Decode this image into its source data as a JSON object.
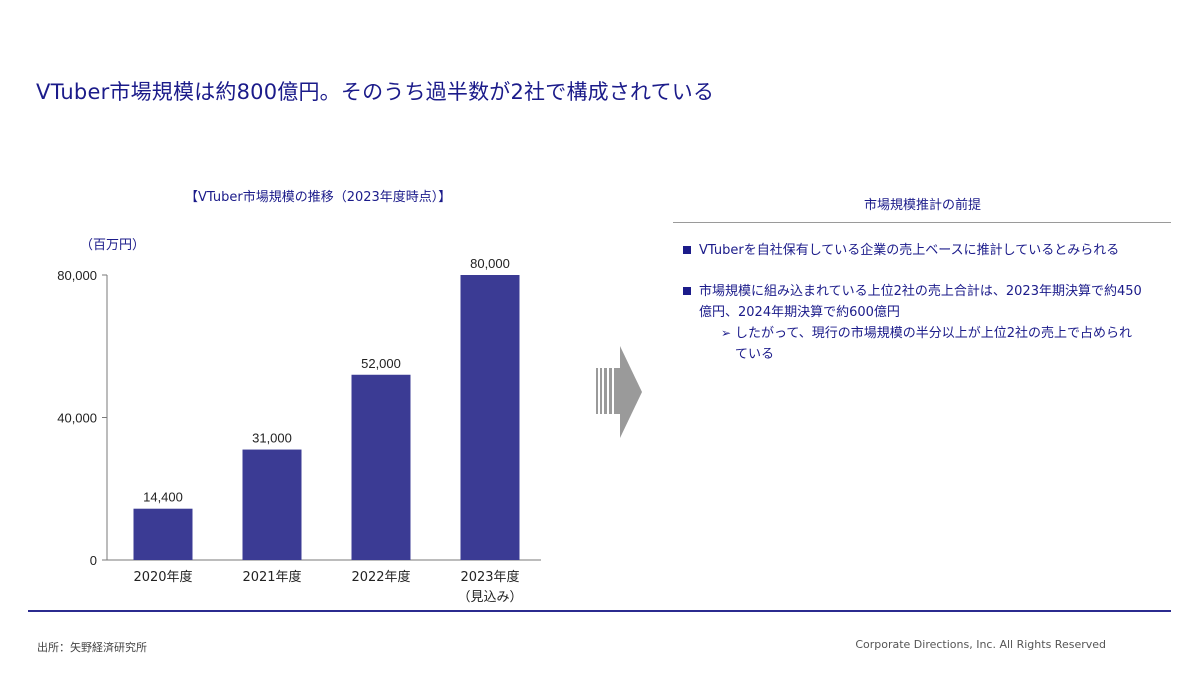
{
  "headline": "VTuber市場規模は約800億円。そのうち過半数が2社で構成されている",
  "chart_data": {
    "type": "bar",
    "title": "【VTuber市場規模の推移（2023年度時点）】",
    "unit": "（百万円）",
    "categories": [
      "2020年度",
      "2021年度",
      "2022年度",
      "2023年度"
    ],
    "category_sublabels": [
      "",
      "",
      "",
      "（見込み）"
    ],
    "values": [
      14400,
      31000,
      52000,
      80000
    ],
    "value_labels": [
      "14,400",
      "31,000",
      "52,000",
      "80,000"
    ],
    "yticks": [
      0,
      40000,
      80000
    ],
    "ytick_labels": [
      "0",
      "40,000",
      "80,000"
    ],
    "ylim": [
      0,
      80000
    ],
    "bar_color": "#3b3b94",
    "grid": false
  },
  "premise": {
    "title": "市場規模推計の前提",
    "bullets": [
      {
        "text": "VTuberを自社保有している企業の売上ベースに推計しているとみられる"
      },
      {
        "text_line1": "市場規模に組み込まれている上位2社の売上合計は、2023年期決算で約450",
        "text_line2": "億円、2024年期決算で約600億円",
        "sub_mark": "➢",
        "sub_line1": "したがって、現行の市場規模の半分以上が上位2社の売上で占められ",
        "sub_line2": "ている"
      }
    ]
  },
  "footer": {
    "source": "出所：矢野経済研究所",
    "copyright": "Corporate Directions, Inc. All Rights Reserved"
  },
  "colors": {
    "accent": "#1b1b8a",
    "bar": "#3b3b94",
    "arrow": "#9a9a9a"
  },
  "icons": {
    "arrow": "right-arrow-icon",
    "bullet": "square-bullet-icon"
  }
}
